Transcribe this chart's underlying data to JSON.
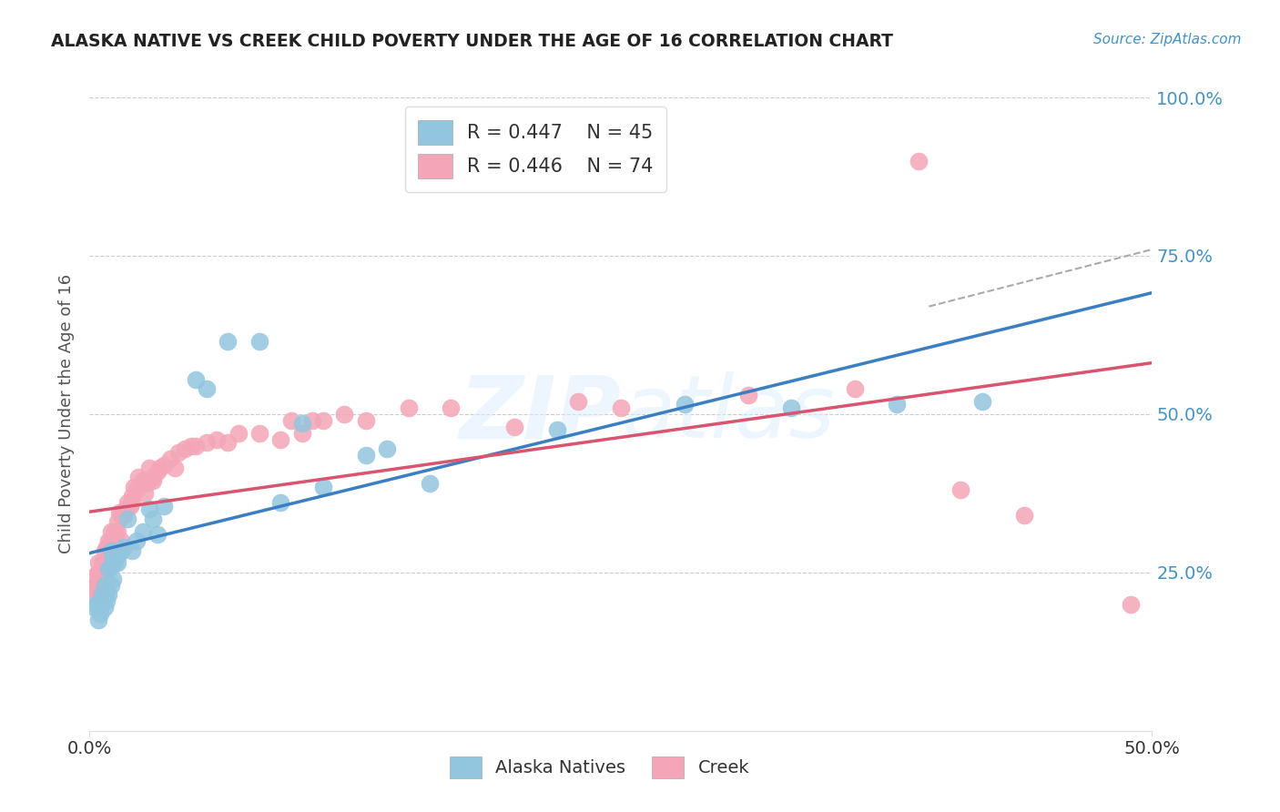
{
  "title": "ALASKA NATIVE VS CREEK CHILD POVERTY UNDER THE AGE OF 16 CORRELATION CHART",
  "source": "Source: ZipAtlas.com",
  "ylabel": "Child Poverty Under the Age of 16",
  "xlim": [
    0.0,
    0.5
  ],
  "ylim": [
    0.0,
    1.0
  ],
  "yticks": [
    0.25,
    0.5,
    0.75,
    1.0
  ],
  "ytick_labels": [
    "25.0%",
    "50.0%",
    "75.0%",
    "100.0%"
  ],
  "background_color": "#ffffff",
  "watermark": "ZIPatlas",
  "legend_R1": "R = 0.447",
  "legend_N1": "N = 45",
  "legend_R2": "R = 0.446",
  "legend_N2": "N = 74",
  "color_alaska": "#92c5de",
  "color_creek": "#f4a6b8",
  "line_color_alaska": "#3a7fc1",
  "line_color_creek": "#d9546e",
  "alaska_x": [
    0.002,
    0.003,
    0.004,
    0.005,
    0.005,
    0.006,
    0.007,
    0.007,
    0.008,
    0.008,
    0.009,
    0.009,
    0.01,
    0.01,
    0.01,
    0.011,
    0.011,
    0.012,
    0.013,
    0.014,
    0.015,
    0.016,
    0.018,
    0.02,
    0.022,
    0.025,
    0.028,
    0.03,
    0.032,
    0.035,
    0.05,
    0.055,
    0.065,
    0.08,
    0.09,
    0.1,
    0.11,
    0.13,
    0.14,
    0.16,
    0.22,
    0.28,
    0.33,
    0.38,
    0.42
  ],
  "alaska_y": [
    0.195,
    0.2,
    0.175,
    0.2,
    0.185,
    0.215,
    0.195,
    0.23,
    0.205,
    0.22,
    0.215,
    0.255,
    0.23,
    0.26,
    0.285,
    0.24,
    0.27,
    0.265,
    0.265,
    0.28,
    0.285,
    0.29,
    0.335,
    0.285,
    0.3,
    0.315,
    0.35,
    0.335,
    0.31,
    0.355,
    0.555,
    0.54,
    0.615,
    0.615,
    0.36,
    0.485,
    0.385,
    0.435,
    0.445,
    0.39,
    0.475,
    0.515,
    0.51,
    0.515,
    0.52
  ],
  "creek_x": [
    0.001,
    0.002,
    0.003,
    0.003,
    0.004,
    0.004,
    0.005,
    0.005,
    0.006,
    0.006,
    0.007,
    0.007,
    0.008,
    0.008,
    0.009,
    0.009,
    0.01,
    0.01,
    0.01,
    0.011,
    0.012,
    0.012,
    0.013,
    0.013,
    0.014,
    0.015,
    0.015,
    0.016,
    0.017,
    0.018,
    0.019,
    0.02,
    0.02,
    0.021,
    0.022,
    0.023,
    0.025,
    0.026,
    0.027,
    0.028,
    0.03,
    0.03,
    0.032,
    0.033,
    0.035,
    0.038,
    0.04,
    0.042,
    0.045,
    0.048,
    0.05,
    0.055,
    0.06,
    0.065,
    0.07,
    0.08,
    0.09,
    0.095,
    0.1,
    0.105,
    0.11,
    0.12,
    0.13,
    0.15,
    0.17,
    0.2,
    0.23,
    0.25,
    0.31,
    0.36,
    0.39,
    0.41,
    0.44,
    0.49
  ],
  "creek_y": [
    0.22,
    0.225,
    0.23,
    0.245,
    0.25,
    0.265,
    0.215,
    0.25,
    0.24,
    0.265,
    0.255,
    0.285,
    0.26,
    0.29,
    0.26,
    0.3,
    0.265,
    0.3,
    0.315,
    0.295,
    0.295,
    0.315,
    0.33,
    0.315,
    0.345,
    0.3,
    0.34,
    0.34,
    0.35,
    0.36,
    0.355,
    0.37,
    0.36,
    0.385,
    0.38,
    0.4,
    0.395,
    0.375,
    0.39,
    0.415,
    0.395,
    0.4,
    0.41,
    0.415,
    0.42,
    0.43,
    0.415,
    0.44,
    0.445,
    0.45,
    0.45,
    0.455,
    0.46,
    0.455,
    0.47,
    0.47,
    0.46,
    0.49,
    0.47,
    0.49,
    0.49,
    0.5,
    0.49,
    0.51,
    0.51,
    0.48,
    0.52,
    0.51,
    0.53,
    0.54,
    0.9,
    0.38,
    0.34,
    0.2
  ],
  "dashed_line_x": [
    0.395,
    0.5
  ],
  "dashed_line_y": [
    0.67,
    0.76
  ]
}
